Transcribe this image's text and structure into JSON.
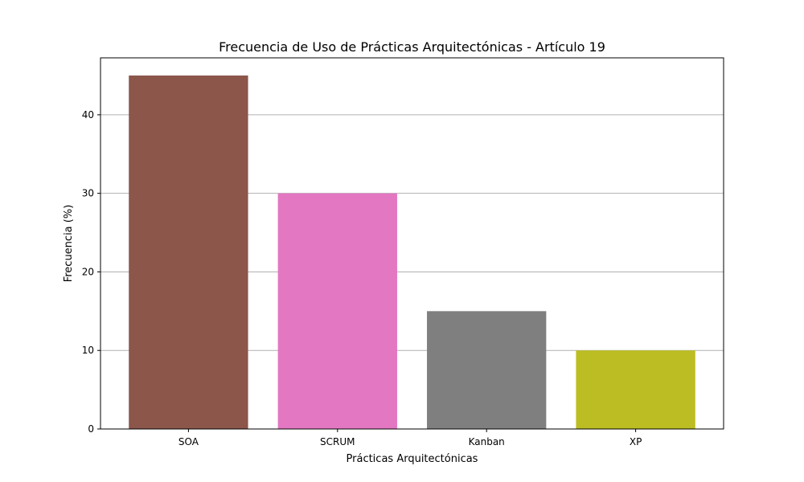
{
  "chart_data": {
    "type": "bar",
    "title": "Frecuencia de Uso de Prácticas Arquitectónicas - Artículo 19",
    "xlabel": "Prácticas Arquitectónicas",
    "ylabel": "Frecuencia (%)",
    "categories": [
      "SOA",
      "SCRUM",
      "Kanban",
      "XP"
    ],
    "values": [
      45,
      30,
      15,
      10
    ],
    "colors": [
      "#8c564b",
      "#e377c2",
      "#7f7f7f",
      "#bcbd22"
    ],
    "ylim": [
      0,
      47.25
    ],
    "yticks": [
      0,
      10,
      20,
      30,
      40
    ],
    "grid": "y-axis",
    "legend": "none"
  }
}
